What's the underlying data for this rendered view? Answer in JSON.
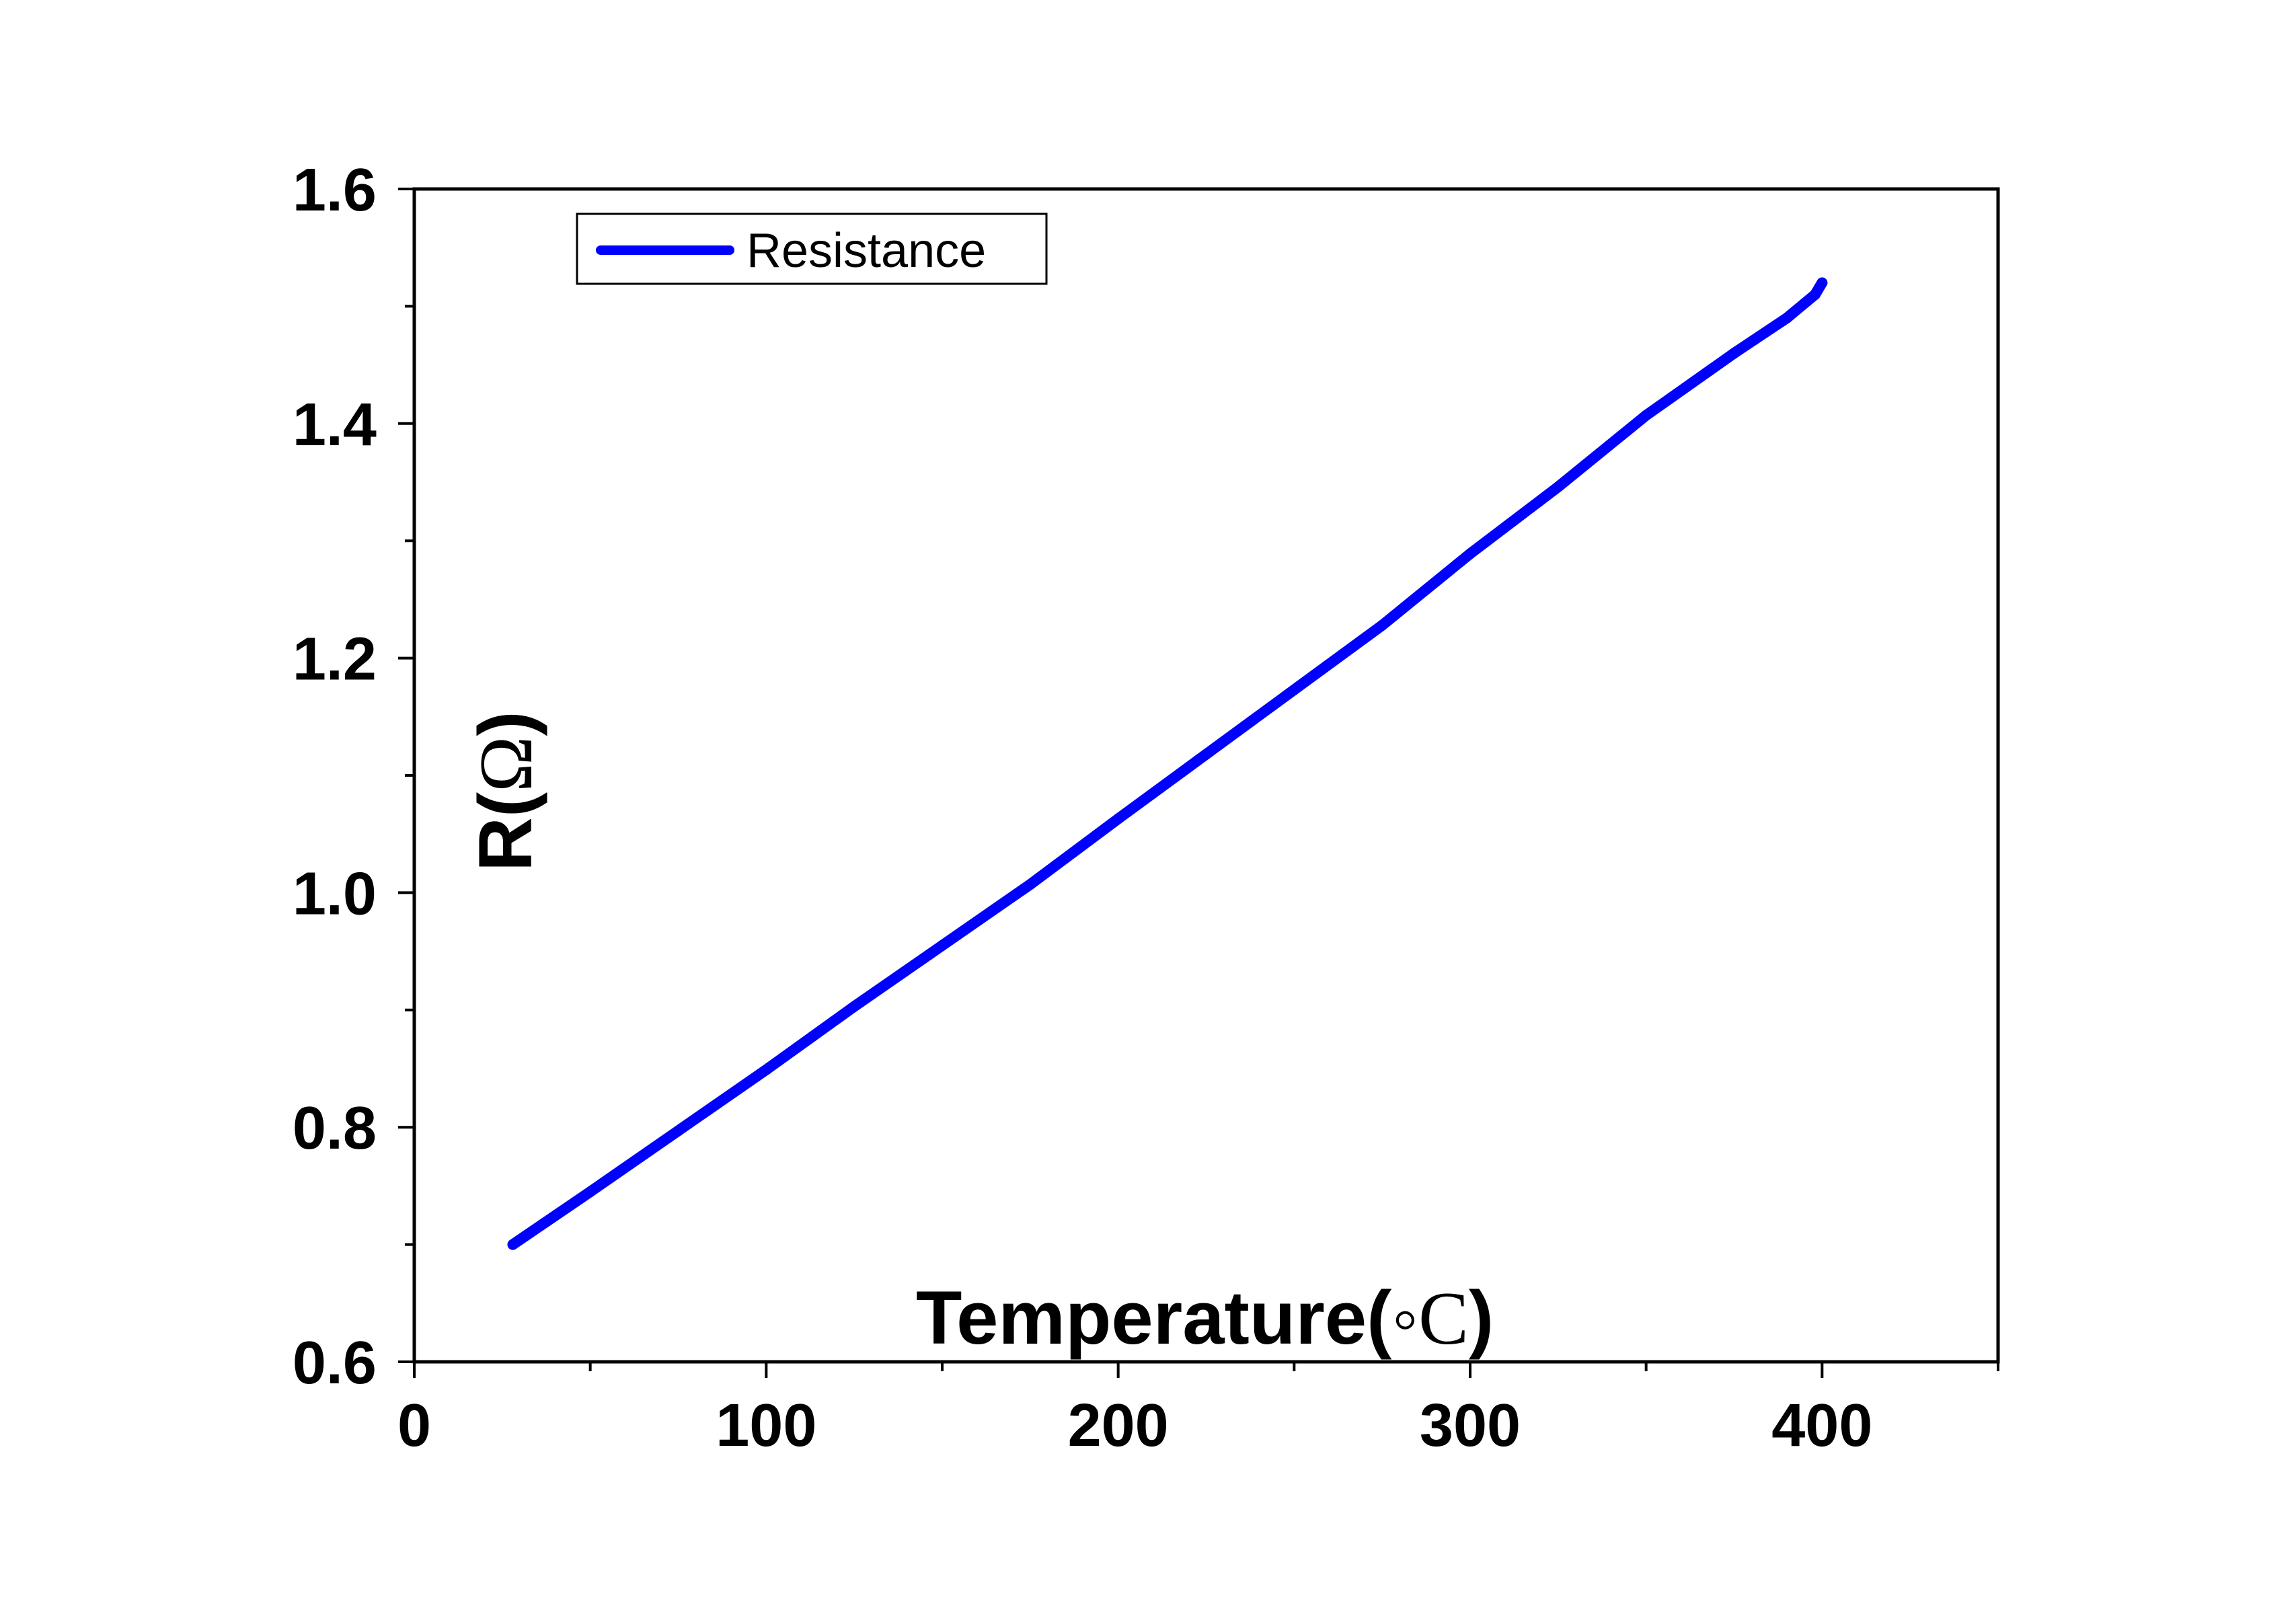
{
  "chart_data": {
    "type": "line",
    "title": "",
    "xlabel": "Temperature(°C)",
    "xlabel_parts": {
      "main": "Temperature(",
      "symbol": "◦C",
      "close": ")"
    },
    "ylabel": "R(Ω)",
    "ylabel_parts": {
      "main": "R(",
      "symbol": "Ω",
      "close": ")"
    },
    "xlim": [
      0,
      450
    ],
    "ylim": [
      0.6,
      1.6
    ],
    "xticks": [
      0,
      100,
      200,
      300,
      400
    ],
    "xtick_labels": [
      "0",
      "100",
      "200",
      "300",
      "400"
    ],
    "xminor_step": 50,
    "yticks": [
      0.6,
      0.8,
      1.0,
      1.2,
      1.4,
      1.6
    ],
    "ytick_labels": [
      "0.6",
      "0.8",
      "1.0",
      "1.2",
      "1.4",
      "1.6"
    ],
    "yminor_step": 0.1,
    "grid": false,
    "legend": {
      "position": "top-left",
      "entries": [
        "Resistance"
      ]
    },
    "series": [
      {
        "name": "Resistance",
        "color": "#0000ff",
        "x": [
          28,
          50,
          75,
          100,
          125,
          150,
          175,
          200,
          225,
          250,
          275,
          300,
          325,
          350,
          375,
          390,
          398,
          400
        ],
        "y": [
          0.7,
          0.745,
          0.797,
          0.849,
          0.903,
          0.955,
          1.007,
          1.063,
          1.118,
          1.173,
          1.228,
          1.289,
          1.346,
          1.407,
          1.46,
          1.49,
          1.51,
          1.52
        ]
      }
    ]
  }
}
